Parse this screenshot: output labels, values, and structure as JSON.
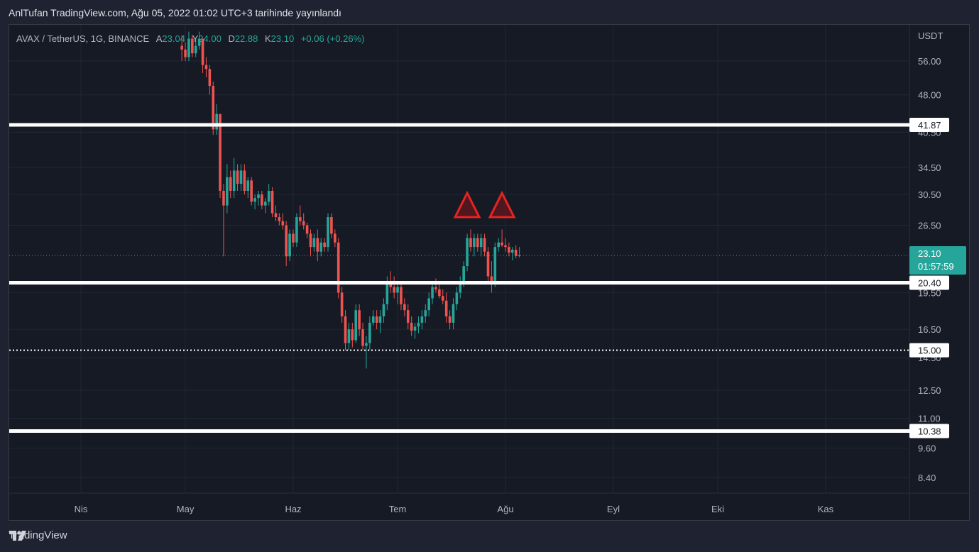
{
  "header": {
    "published": "AnlTufan TradingView.com, Ağu 05, 2022 01:02 UTC+3 tarihinde yayınlandı"
  },
  "legend": {
    "symbol": "AVAX / TetherUS, 1G, BINANCE",
    "open_label": "A",
    "open_value": "23.04",
    "high_label": "Y",
    "high_value": "24.00",
    "low_label": "D",
    "low_value": "22.88",
    "close_label": "K",
    "close_value": "23.10",
    "change": "+0.06 (+0.26%)"
  },
  "footer": {
    "brand": "TradingView"
  },
  "colors": {
    "up": "#26a69a",
    "down": "#ef5350",
    "bg": "#161a25",
    "grid": "#232734",
    "level": "#ffffff",
    "marker": "#e52421"
  },
  "chart_data": {
    "type": "candlestick",
    "currency": "USDT",
    "scale": "log",
    "y_ticks": [
      "56.00",
      "48.00",
      "40.50",
      "34.50",
      "30.50",
      "26.50",
      "19.50",
      "16.50",
      "14.50",
      "12.50",
      "11.00",
      "9.60",
      "8.40"
    ],
    "x_ticks": [
      {
        "label": "Nis",
        "date": "2022-04-01"
      },
      {
        "label": "May",
        "date": "2022-05-01"
      },
      {
        "label": "Haz",
        "date": "2022-06-01"
      },
      {
        "label": "Tem",
        "date": "2022-07-01"
      },
      {
        "label": "Ağu",
        "date": "2022-08-01"
      },
      {
        "label": "Eyl",
        "date": "2022-09-01"
      },
      {
        "label": "Eki",
        "date": "2022-10-01"
      },
      {
        "label": "Kas",
        "date": "2022-11-01"
      }
    ],
    "last_price": {
      "value": 23.1,
      "label": "23.10",
      "countdown": "01:57:59"
    },
    "levels": [
      {
        "value": 41.87,
        "label": "41.87",
        "style": "solid"
      },
      {
        "value": 20.4,
        "label": "20.40",
        "style": "solid"
      },
      {
        "value": 15.0,
        "label": "15.00",
        "style": "dotted"
      },
      {
        "value": 10.38,
        "label": "10.38",
        "style": "solid"
      }
    ],
    "markers": [
      {
        "shape": "triangle",
        "date": "2022-07-21",
        "price": 27.5
      },
      {
        "shape": "triangle",
        "date": "2022-07-31",
        "price": 27.5
      }
    ],
    "candles": [
      [
        "2022-04-30",
        60,
        63,
        56,
        59
      ],
      [
        "2022-05-01",
        59,
        61,
        56,
        57
      ],
      [
        "2022-05-02",
        57,
        64,
        56,
        62
      ],
      [
        "2022-05-03",
        62,
        63,
        57,
        58
      ],
      [
        "2022-05-04",
        58,
        62,
        57,
        60
      ],
      [
        "2022-05-05",
        60,
        64,
        59,
        62
      ],
      [
        "2022-05-06",
        62,
        62,
        53,
        55
      ],
      [
        "2022-05-07",
        55,
        57,
        52,
        54
      ],
      [
        "2022-05-08",
        54,
        55,
        48,
        50
      ],
      [
        "2022-05-09",
        50,
        51,
        40,
        41
      ],
      [
        "2022-05-10",
        41,
        46,
        40,
        44
      ],
      [
        "2022-05-11",
        44,
        44,
        30,
        31
      ],
      [
        "2022-05-12",
        31,
        32,
        23,
        29
      ],
      [
        "2022-05-13",
        29,
        35,
        28,
        33
      ],
      [
        "2022-05-14",
        33,
        34,
        30,
        31
      ],
      [
        "2022-05-15",
        31,
        36,
        30,
        34
      ],
      [
        "2022-05-16",
        34,
        35,
        31,
        32
      ],
      [
        "2022-05-17",
        32,
        35,
        31,
        34
      ],
      [
        "2022-05-18",
        34,
        35,
        30.5,
        31
      ],
      [
        "2022-05-19",
        31,
        33,
        30,
        32.5
      ],
      [
        "2022-05-20",
        32.5,
        33,
        29,
        29.5
      ],
      [
        "2022-05-21",
        29.5,
        30.5,
        28.5,
        30
      ],
      [
        "2022-05-22",
        30,
        31,
        29,
        30.5
      ],
      [
        "2022-05-23",
        30.5,
        31,
        28.5,
        29
      ],
      [
        "2022-05-24",
        29,
        30,
        28,
        29.5
      ],
      [
        "2022-05-25",
        29.5,
        32,
        29,
        31
      ],
      [
        "2022-05-26",
        31,
        31.5,
        27.5,
        28
      ],
      [
        "2022-05-27",
        28,
        29,
        27,
        27.5
      ],
      [
        "2022-05-28",
        27.5,
        28,
        26.5,
        27
      ],
      [
        "2022-05-29",
        27,
        28,
        26,
        26.5
      ],
      [
        "2022-05-30",
        26.5,
        27,
        22,
        23
      ],
      [
        "2022-05-31",
        23,
        26,
        22.5,
        25.5
      ],
      [
        "2022-06-01",
        25.5,
        26,
        24,
        24.5
      ],
      [
        "2022-06-02",
        24.5,
        28,
        24,
        27.5
      ],
      [
        "2022-06-03",
        27.5,
        29,
        26.5,
        27
      ],
      [
        "2022-06-04",
        27,
        28,
        26,
        26.5
      ],
      [
        "2022-06-05",
        26.5,
        26.8,
        25,
        25.5
      ],
      [
        "2022-06-06",
        25.5,
        26,
        23,
        24
      ],
      [
        "2022-06-07",
        24,
        25.5,
        23.5,
        25
      ],
      [
        "2022-06-08",
        25,
        26,
        22.5,
        23.5
      ],
      [
        "2022-06-09",
        23.5,
        25,
        23,
        24.5
      ],
      [
        "2022-06-10",
        24.5,
        25,
        23.5,
        24
      ],
      [
        "2022-06-11",
        24,
        28,
        23.5,
        27.5
      ],
      [
        "2022-06-12",
        27.5,
        28,
        25,
        25.5
      ],
      [
        "2022-06-13",
        25.5,
        26,
        24,
        24.5
      ],
      [
        "2022-06-14",
        24.5,
        25,
        19,
        19.5
      ],
      [
        "2022-06-15",
        19.5,
        20,
        17,
        17.5
      ],
      [
        "2022-06-16",
        17.5,
        18,
        15,
        15.5
      ],
      [
        "2022-06-17",
        15.5,
        17,
        15,
        16.5
      ],
      [
        "2022-06-18",
        16.5,
        17,
        15.2,
        15.7
      ],
      [
        "2022-06-19",
        15.7,
        18.5,
        15.5,
        18
      ],
      [
        "2022-06-20",
        18,
        18.5,
        16,
        16.5
      ],
      [
        "2022-06-21",
        16.5,
        17,
        15,
        15.3
      ],
      [
        "2022-06-22",
        15.3,
        16,
        13.8,
        15.5
      ],
      [
        "2022-06-23",
        15.5,
        17.5,
        15,
        17
      ],
      [
        "2022-06-24",
        17,
        18,
        16.8,
        17.5
      ],
      [
        "2022-06-25",
        17.5,
        18,
        16.5,
        17
      ],
      [
        "2022-06-26",
        17,
        18,
        16.2,
        17.5
      ],
      [
        "2022-06-27",
        17.5,
        19,
        17,
        18.5
      ],
      [
        "2022-06-28",
        18.5,
        21,
        18,
        20.5
      ],
      [
        "2022-06-29",
        20.5,
        21.5,
        19.5,
        20
      ],
      [
        "2022-06-30",
        20,
        21,
        19,
        19.5
      ],
      [
        "2022-07-01",
        19.5,
        20.5,
        18.5,
        20
      ],
      [
        "2022-07-02",
        20,
        20.5,
        18,
        18.5
      ],
      [
        "2022-07-03",
        18.5,
        19,
        17.5,
        18
      ],
      [
        "2022-07-04",
        18,
        18.5,
        16.5,
        17
      ],
      [
        "2022-07-05",
        17,
        17.5,
        16,
        16.4
      ],
      [
        "2022-07-06",
        16.4,
        17,
        15.8,
        16.7
      ],
      [
        "2022-07-07",
        16.7,
        17.5,
        16.2,
        17
      ],
      [
        "2022-07-08",
        17,
        18,
        16.5,
        17.5
      ],
      [
        "2022-07-09",
        17.5,
        18.5,
        17,
        18
      ],
      [
        "2022-07-10",
        18,
        19.5,
        17.5,
        19
      ],
      [
        "2022-07-11",
        19,
        20.5,
        18.5,
        20
      ],
      [
        "2022-07-12",
        20,
        20.8,
        19.5,
        19.8
      ],
      [
        "2022-07-13",
        19.8,
        20.3,
        19,
        19.2
      ],
      [
        "2022-07-14",
        19.2,
        19.8,
        18.5,
        18.8
      ],
      [
        "2022-07-15",
        18.8,
        19.5,
        17,
        17.5
      ],
      [
        "2022-07-16",
        17.5,
        18,
        16.5,
        17
      ],
      [
        "2022-07-17",
        17,
        19,
        16.5,
        18.5
      ],
      [
        "2022-07-18",
        18.5,
        20,
        18,
        19.5
      ],
      [
        "2022-07-19",
        19.5,
        21,
        19,
        20.5
      ],
      [
        "2022-07-20",
        20.5,
        22.5,
        20,
        22
      ],
      [
        "2022-07-21",
        22,
        25.5,
        21.5,
        25
      ],
      [
        "2022-07-22",
        25,
        26,
        23.5,
        24
      ],
      [
        "2022-07-23",
        24,
        25.5,
        23,
        25
      ],
      [
        "2022-07-24",
        25,
        25.5,
        23.5,
        24
      ],
      [
        "2022-07-25",
        24,
        25.5,
        23,
        25
      ],
      [
        "2022-07-26",
        25,
        25.5,
        23,
        23.5
      ],
      [
        "2022-07-27",
        23.5,
        24,
        20.5,
        21
      ],
      [
        "2022-07-28",
        21,
        22.5,
        19.5,
        20.5
      ],
      [
        "2022-07-29",
        20.5,
        24.5,
        20,
        24
      ],
      [
        "2022-07-30",
        24,
        25,
        23.5,
        24.5
      ],
      [
        "2022-07-31",
        24.5,
        26,
        24,
        24.2
      ],
      [
        "2022-08-01",
        24.2,
        25,
        23.5,
        24
      ],
      [
        "2022-08-02",
        24,
        24.5,
        23,
        23.4
      ],
      [
        "2022-08-03",
        23.4,
        24,
        22.6,
        23.7
      ],
      [
        "2022-08-04",
        23.7,
        24.2,
        22.8,
        23.04
      ],
      [
        "2022-08-05",
        23.04,
        24,
        22.88,
        23.1
      ]
    ]
  }
}
